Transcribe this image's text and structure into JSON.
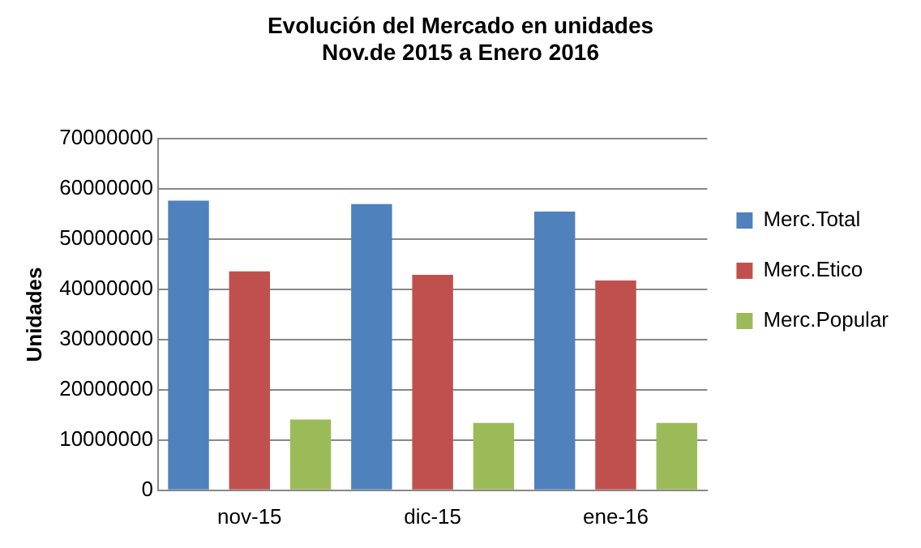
{
  "chart_data": {
    "type": "bar",
    "title": "Evolución del Mercado en unidades\nNov.de 2015 a Enero 2016",
    "ylabel": "Unidades",
    "categories": [
      "nov-15",
      "dic-15",
      "ene-16"
    ],
    "series": [
      {
        "name": "Merc.Total",
        "color": "#4f81bd",
        "values": [
          57700000,
          57000000,
          55500000
        ]
      },
      {
        "name": "Merc.Etico",
        "color": "#c0504d",
        "values": [
          43600000,
          42900000,
          41800000
        ]
      },
      {
        "name": "Merc.Popular",
        "color": "#9bbb59",
        "values": [
          14100000,
          13400000,
          13400000
        ]
      }
    ],
    "ylim": [
      0,
      70000000
    ],
    "yticks": [
      0,
      10000000,
      20000000,
      30000000,
      40000000,
      50000000,
      60000000,
      70000000
    ],
    "grid": "y",
    "legend": "right"
  }
}
